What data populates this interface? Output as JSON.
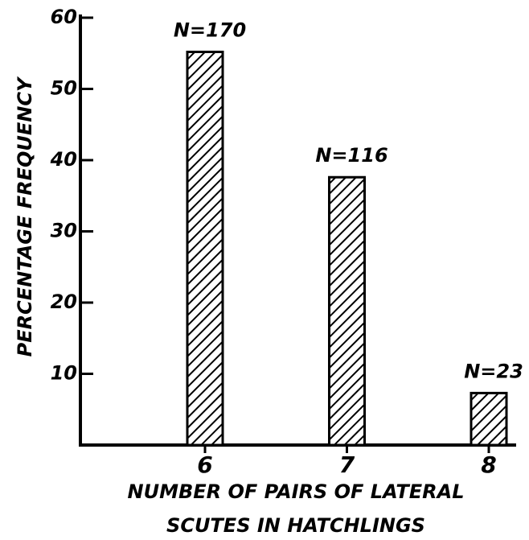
{
  "chart_data": {
    "type": "bar",
    "ylabel": "PERCENTAGE FREQUENCY",
    "xlabel": [
      "NUMBER OF PAIRS OF LATERAL",
      "SCUTES IN HATCHLINGS"
    ],
    "categories": [
      "6",
      "7",
      "8"
    ],
    "values": [
      55.2,
      37.6,
      7.3
    ],
    "annotations": [
      "N=170",
      "N=116",
      "N=23"
    ],
    "color": "#000000",
    "ylim": [
      0,
      60
    ],
    "yticks": [
      10,
      20,
      30,
      40,
      50,
      60
    ],
    "grid": false
  }
}
